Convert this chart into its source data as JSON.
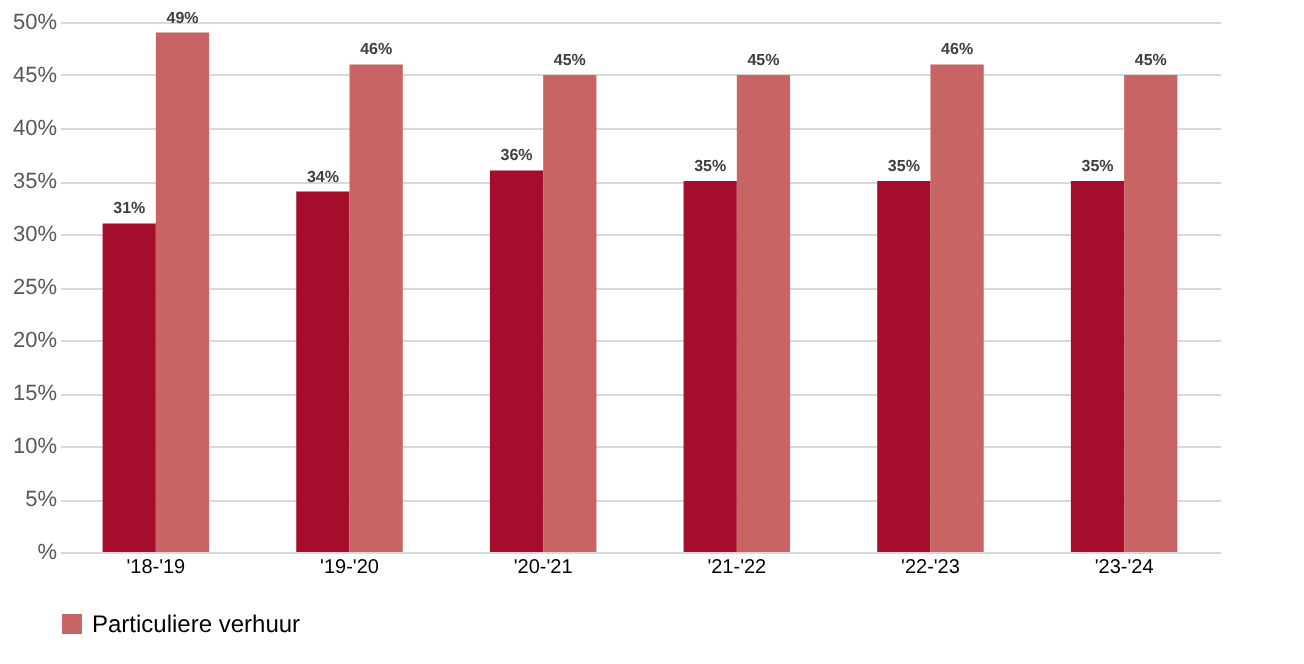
{
  "chart_data": {
    "type": "bar",
    "categories": [
      "'18-'19",
      "'19-'20",
      "'20-'21",
      "'21-'22",
      "'22-'23",
      "'23-'24"
    ],
    "series": [
      {
        "color": "#a50d2d",
        "values": [
          31,
          34,
          36,
          35,
          35,
          35
        ],
        "value_labels": [
          "31%",
          "34%",
          "36%",
          "35%",
          "35%",
          "35%"
        ]
      },
      {
        "name": "Particuliere verhuur",
        "color": "#c86464",
        "values": [
          49,
          46,
          45,
          45,
          46,
          45
        ],
        "value_labels": [
          "49%",
          "46%",
          "45%",
          "45%",
          "46%",
          "45%"
        ]
      }
    ],
    "ylim": [
      0,
      50
    ],
    "yticks": [
      {
        "value": 0,
        "label": "%"
      },
      {
        "value": 5,
        "label": "5%"
      },
      {
        "value": 10,
        "label": "10%"
      },
      {
        "value": 15,
        "label": "15%"
      },
      {
        "value": 20,
        "label": "20%"
      },
      {
        "value": 25,
        "label": "25%"
      },
      {
        "value": 30,
        "label": "30%"
      },
      {
        "value": 35,
        "label": "35%"
      },
      {
        "value": 40,
        "label": "40%"
      },
      {
        "value": 45,
        "label": "45%"
      },
      {
        "value": 50,
        "label": "50%"
      }
    ],
    "grid": "y",
    "legend": "bottom"
  }
}
